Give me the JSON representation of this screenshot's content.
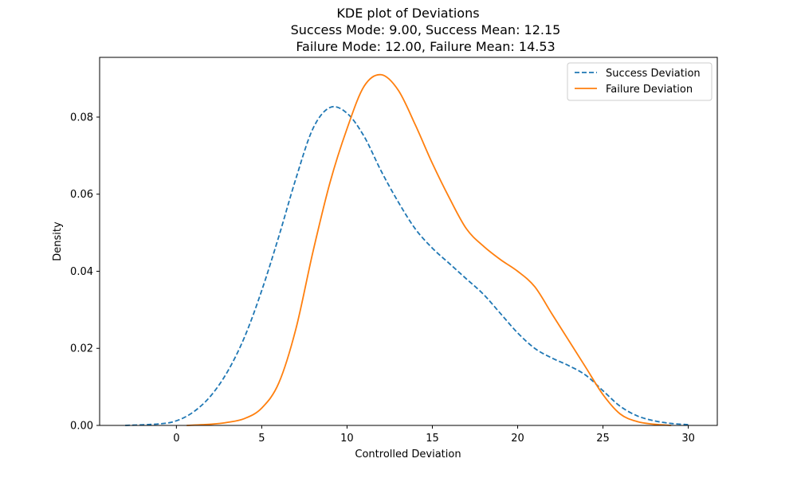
{
  "chart_data": {
    "type": "line",
    "title": "KDE plot of Deviations",
    "subtitle_lines": [
      "Success Mode: 9.00, Success Mean: 12.15",
      "Failure Mode: 12.00, Failure Mean: 14.53"
    ],
    "xlabel": "Controlled Deviation",
    "ylabel": "Density",
    "xlim": [
      -4.5,
      31.7
    ],
    "ylim": [
      0,
      0.0955
    ],
    "x_ticks": [
      0,
      5,
      10,
      15,
      20,
      25,
      30
    ],
    "x_tick_labels": [
      "0",
      "5",
      "10",
      "15",
      "20",
      "25",
      "30"
    ],
    "y_ticks": [
      0,
      0.02,
      0.04,
      0.06,
      0.08
    ],
    "y_tick_labels": [
      "0.00",
      "0.02",
      "0.04",
      "0.06",
      "0.08"
    ],
    "grid": false,
    "legend": {
      "placement": "top-right"
    },
    "series": [
      {
        "name": "Success Deviation",
        "color": "#1f77b4",
        "line_style": "dashed",
        "x": [
          -3,
          -1,
          0,
          1,
          2,
          3,
          4,
          5,
          6,
          7,
          8,
          9,
          10,
          11,
          12,
          13,
          14,
          15,
          16,
          17,
          18,
          19,
          20,
          21,
          22,
          23,
          24,
          25,
          26,
          27,
          28,
          29,
          30
        ],
        "y": [
          0.0,
          0.0004,
          0.0012,
          0.0035,
          0.0076,
          0.014,
          0.023,
          0.035,
          0.049,
          0.064,
          0.077,
          0.0825,
          0.081,
          0.075,
          0.066,
          0.058,
          0.051,
          0.046,
          0.042,
          0.038,
          0.034,
          0.029,
          0.024,
          0.02,
          0.0175,
          0.0155,
          0.013,
          0.009,
          0.005,
          0.0025,
          0.0012,
          0.0005,
          0.0002
        ]
      },
      {
        "name": "Failure Deviation",
        "color": "#ff7f0e",
        "line_style": "solid",
        "x": [
          0.6,
          2,
          3,
          4,
          5,
          6,
          7,
          8,
          9,
          10,
          11,
          12,
          13,
          14,
          15,
          16,
          17,
          18,
          19,
          20,
          21,
          22,
          23,
          24,
          25,
          26,
          27,
          28,
          29
        ],
        "y": [
          0.0,
          0.0003,
          0.0008,
          0.0018,
          0.0045,
          0.011,
          0.025,
          0.045,
          0.063,
          0.077,
          0.088,
          0.091,
          0.087,
          0.078,
          0.068,
          0.059,
          0.051,
          0.0465,
          0.043,
          0.04,
          0.036,
          0.029,
          0.022,
          0.015,
          0.008,
          0.003,
          0.001,
          0.0003,
          0.0
        ]
      }
    ]
  }
}
